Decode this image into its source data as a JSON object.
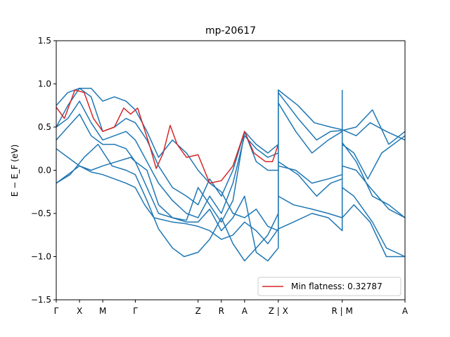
{
  "chart_data": {
    "type": "line",
    "title": "mp-20617",
    "xlabel": "",
    "ylabel": "E − E_F (eV)",
    "xlim": [
      0,
      15
    ],
    "ylim": [
      -1.5,
      1.5
    ],
    "yticks": [
      -1.5,
      -1.0,
      -0.5,
      0.0,
      0.5,
      1.0,
      1.5
    ],
    "ytick_labels": [
      "−1.5",
      "−1.0",
      "−0.5",
      "0.0",
      "0.5",
      "1.0",
      "1.5"
    ],
    "xticks": [
      {
        "pos": 0.0,
        "label": "Γ"
      },
      {
        "pos": 1.0,
        "label": "X"
      },
      {
        "pos": 2.0,
        "label": "M"
      },
      {
        "pos": 3.4,
        "label": "Γ"
      },
      {
        "pos": 6.1,
        "label": "Z"
      },
      {
        "pos": 7.1,
        "label": "R"
      },
      {
        "pos": 8.1,
        "label": "A"
      },
      {
        "pos": 9.55,
        "label": "Z | X"
      },
      {
        "pos": 12.3,
        "label": "R | M"
      },
      {
        "pos": 15.0,
        "label": "A"
      }
    ],
    "segment_breaks": [
      9.55,
      12.3
    ],
    "grid": false,
    "colors": {
      "band": "#1f77b4",
      "flat": "#d62728"
    },
    "legend": {
      "location": "lower-right",
      "entries": [
        {
          "label": "Min flatness: 0.32787",
          "color": "#d62728"
        }
      ]
    },
    "series": [
      {
        "name": "band-1",
        "highlight": false,
        "points": [
          [
            0,
            -0.15
          ],
          [
            0.5,
            -0.05
          ],
          [
            1,
            0.05
          ],
          [
            1.5,
            -0.02
          ],
          [
            2,
            -0.05
          ],
          [
            2.5,
            -0.1
          ],
          [
            3,
            -0.15
          ],
          [
            3.4,
            -0.2
          ],
          [
            3.8,
            -0.4
          ],
          [
            4.2,
            -0.55
          ],
          [
            5,
            -0.6
          ],
          [
            5.6,
            -0.62
          ],
          [
            6.1,
            -0.65
          ],
          [
            6.6,
            -0.7
          ],
          [
            7.1,
            -0.8
          ],
          [
            7.6,
            -0.75
          ],
          [
            8.1,
            -0.6
          ],
          [
            8.6,
            -0.7
          ],
          [
            9.1,
            -0.85
          ],
          [
            9.55,
            -0.68
          ],
          [
            9.55,
            -0.3
          ],
          [
            10.2,
            -0.4
          ],
          [
            11,
            -0.45
          ],
          [
            11.7,
            -0.5
          ],
          [
            12.3,
            -0.55
          ],
          [
            12.3,
            -0.2
          ],
          [
            12.8,
            -0.3
          ],
          [
            13.6,
            -0.6
          ],
          [
            14.2,
            -0.9
          ],
          [
            15,
            -1.0
          ]
        ]
      },
      {
        "name": "band-2",
        "highlight": false,
        "points": [
          [
            0,
            -0.15
          ],
          [
            0.6,
            -0.05
          ],
          [
            1.2,
            0.15
          ],
          [
            1.8,
            0.3
          ],
          [
            2.4,
            0.05
          ],
          [
            3,
            0.0
          ],
          [
            3.4,
            -0.05
          ],
          [
            3.9,
            -0.35
          ],
          [
            4.4,
            -0.68
          ],
          [
            5,
            -0.9
          ],
          [
            5.5,
            -1.0
          ],
          [
            6.1,
            -0.95
          ],
          [
            6.6,
            -0.8
          ],
          [
            7.1,
            -0.55
          ],
          [
            7.6,
            -0.85
          ],
          [
            8.1,
            -1.05
          ],
          [
            8.6,
            -0.9
          ],
          [
            9.1,
            -0.75
          ],
          [
            9.55,
            -0.5
          ],
          [
            9.55,
            0.05
          ],
          [
            10.3,
            0.0
          ],
          [
            11,
            -0.15
          ],
          [
            11.7,
            -0.1
          ],
          [
            12.3,
            -0.05
          ],
          [
            12.3,
            0.05
          ],
          [
            12.9,
            0.0
          ],
          [
            13.5,
            -0.2
          ],
          [
            14.3,
            -0.45
          ],
          [
            15,
            -0.55
          ]
        ]
      },
      {
        "name": "band-3",
        "highlight": false,
        "points": [
          [
            0,
            0.25
          ],
          [
            0.5,
            0.15
          ],
          [
            1,
            0.05
          ],
          [
            1.5,
            0.0
          ],
          [
            2,
            0.05
          ],
          [
            2.6,
            0.1
          ],
          [
            3.2,
            0.15
          ],
          [
            3.4,
            0.1
          ],
          [
            3.9,
            -0.2
          ],
          [
            4.4,
            -0.5
          ],
          [
            5,
            -0.55
          ],
          [
            5.6,
            -0.6
          ],
          [
            6.1,
            -0.6
          ],
          [
            6.6,
            -0.45
          ],
          [
            7.1,
            -0.7
          ],
          [
            7.6,
            -0.55
          ],
          [
            8.1,
            -0.3
          ],
          [
            8.6,
            -0.95
          ],
          [
            9.1,
            -1.05
          ],
          [
            9.55,
            -0.9
          ],
          [
            9.55,
            0.1
          ],
          [
            10.4,
            -0.05
          ],
          [
            11.2,
            -0.3
          ],
          [
            11.8,
            -0.15
          ],
          [
            12.3,
            -0.1
          ],
          [
            12.3,
            0.3
          ],
          [
            12.8,
            0.2
          ],
          [
            13.4,
            -0.1
          ],
          [
            14,
            0.2
          ],
          [
            15,
            0.4
          ]
        ]
      },
      {
        "name": "band-4",
        "highlight": false,
        "points": [
          [
            0,
            0.35
          ],
          [
            0.5,
            0.5
          ],
          [
            1,
            0.65
          ],
          [
            1.5,
            0.4
          ],
          [
            2,
            0.3
          ],
          [
            2.5,
            0.3
          ],
          [
            3,
            0.25
          ],
          [
            3.4,
            0.1
          ],
          [
            3.9,
            0.0
          ],
          [
            4.4,
            -0.4
          ],
          [
            5,
            -0.55
          ],
          [
            5.6,
            -0.58
          ],
          [
            6.1,
            -0.2
          ],
          [
            6.6,
            -0.4
          ],
          [
            7.1,
            -0.6
          ],
          [
            7.6,
            -0.35
          ],
          [
            8.1,
            0.45
          ],
          [
            8.6,
            0.1
          ],
          [
            9.1,
            0.0
          ],
          [
            9.55,
            0.0
          ],
          [
            9.55,
            0.78
          ],
          [
            10.3,
            0.45
          ],
          [
            11,
            0.2
          ],
          [
            11.7,
            0.35
          ],
          [
            12.3,
            0.45
          ],
          [
            12.3,
            0.32
          ],
          [
            12.9,
            0.1
          ],
          [
            13.6,
            -0.3
          ],
          [
            14.3,
            -0.4
          ],
          [
            15,
            -0.55
          ]
        ]
      },
      {
        "name": "band-5",
        "highlight": false,
        "points": [
          [
            0,
            0.5
          ],
          [
            0.5,
            0.6
          ],
          [
            1,
            0.8
          ],
          [
            1.5,
            0.55
          ],
          [
            2,
            0.35
          ],
          [
            2.5,
            0.4
          ],
          [
            3,
            0.45
          ],
          [
            3.4,
            0.35
          ],
          [
            3.9,
            0.1
          ],
          [
            4.4,
            -0.15
          ],
          [
            5,
            -0.35
          ],
          [
            5.6,
            -0.5
          ],
          [
            6.1,
            -0.55
          ],
          [
            6.6,
            -0.3
          ],
          [
            7.1,
            -0.5
          ],
          [
            7.6,
            -0.15
          ],
          [
            8.1,
            0.4
          ],
          [
            8.6,
            0.25
          ],
          [
            9.1,
            0.15
          ],
          [
            9.55,
            0.2
          ],
          [
            9.55,
            0.9
          ],
          [
            10.4,
            0.6
          ],
          [
            11.2,
            0.35
          ],
          [
            11.8,
            0.45
          ],
          [
            12.3,
            0.46
          ],
          [
            12.3,
            0.47
          ],
          [
            12.9,
            0.4
          ],
          [
            13.5,
            0.55
          ],
          [
            14.2,
            0.45
          ],
          [
            15,
            0.35
          ]
        ]
      },
      {
        "name": "band-6",
        "highlight": false,
        "points": [
          [
            0,
            0.75
          ],
          [
            0.5,
            0.9
          ],
          [
            1,
            0.95
          ],
          [
            1.5,
            0.85
          ],
          [
            2,
            0.45
          ],
          [
            2.5,
            0.5
          ],
          [
            3,
            0.6
          ],
          [
            3.4,
            0.55
          ],
          [
            3.9,
            0.35
          ],
          [
            4.4,
            0.05
          ],
          [
            5,
            -0.2
          ],
          [
            5.6,
            -0.3
          ],
          [
            6.1,
            -0.4
          ],
          [
            6.6,
            -0.1
          ],
          [
            7.1,
            -0.3
          ],
          [
            7.6,
            0.0
          ],
          [
            8.1,
            0.45
          ],
          [
            8.6,
            0.3
          ],
          [
            9.1,
            0.2
          ],
          [
            9.55,
            0.3
          ],
          [
            9.55,
            0.93
          ],
          [
            10.4,
            0.75
          ],
          [
            11.1,
            0.55
          ],
          [
            11.8,
            0.5
          ],
          [
            12.3,
            0.47
          ],
          [
            12.3,
            0.46
          ],
          [
            12.9,
            0.5
          ],
          [
            13.6,
            0.7
          ],
          [
            14.3,
            0.3
          ],
          [
            15,
            0.45
          ]
        ]
      },
      {
        "name": "band-7",
        "highlight": false,
        "points": [
          [
            0,
            0.5
          ],
          [
            0.5,
            0.75
          ],
          [
            1,
            0.95
          ],
          [
            1.5,
            0.95
          ],
          [
            2,
            0.8
          ],
          [
            2.5,
            0.85
          ],
          [
            3,
            0.8
          ],
          [
            3.4,
            0.7
          ],
          [
            3.9,
            0.45
          ],
          [
            4.4,
            0.15
          ],
          [
            5,
            0.35
          ],
          [
            5.6,
            0.2
          ],
          [
            6.1,
            0.0
          ],
          [
            6.6,
            -0.15
          ],
          [
            7.1,
            -0.25
          ],
          [
            7.6,
            -0.5
          ],
          [
            8.1,
            -0.55
          ],
          [
            8.6,
            -0.45
          ],
          [
            9.1,
            -0.65
          ],
          [
            9.55,
            -0.7
          ],
          [
            9.55,
            -0.68
          ],
          [
            10.2,
            -0.6
          ],
          [
            11,
            -0.5
          ],
          [
            11.7,
            -0.55
          ],
          [
            12.3,
            -0.7
          ],
          [
            12.3,
            -0.55
          ],
          [
            12.8,
            -0.4
          ],
          [
            13.5,
            -0.6
          ],
          [
            14.2,
            -1.0
          ],
          [
            15,
            -1.0
          ]
        ]
      },
      {
        "name": "flat-band",
        "highlight": true,
        "points": [
          [
            0,
            0.73
          ],
          [
            0.35,
            0.6
          ],
          [
            0.8,
            0.93
          ],
          [
            1.2,
            0.9
          ],
          [
            1.6,
            0.6
          ],
          [
            2,
            0.45
          ],
          [
            2.5,
            0.5
          ],
          [
            2.9,
            0.72
          ],
          [
            3.2,
            0.65
          ],
          [
            3.5,
            0.72
          ],
          [
            4,
            0.3
          ],
          [
            4.3,
            0.02
          ],
          [
            4.6,
            0.2
          ],
          [
            4.9,
            0.52
          ],
          [
            5.2,
            0.3
          ],
          [
            5.6,
            0.15
          ],
          [
            6.1,
            0.18
          ],
          [
            6.6,
            -0.15
          ],
          [
            7.1,
            -0.12
          ],
          [
            7.6,
            0.05
          ],
          [
            8.1,
            0.45
          ],
          [
            8.5,
            0.2
          ],
          [
            9,
            0.1
          ],
          [
            9.3,
            0.1
          ],
          [
            9.55,
            0.3
          ]
        ]
      }
    ]
  }
}
